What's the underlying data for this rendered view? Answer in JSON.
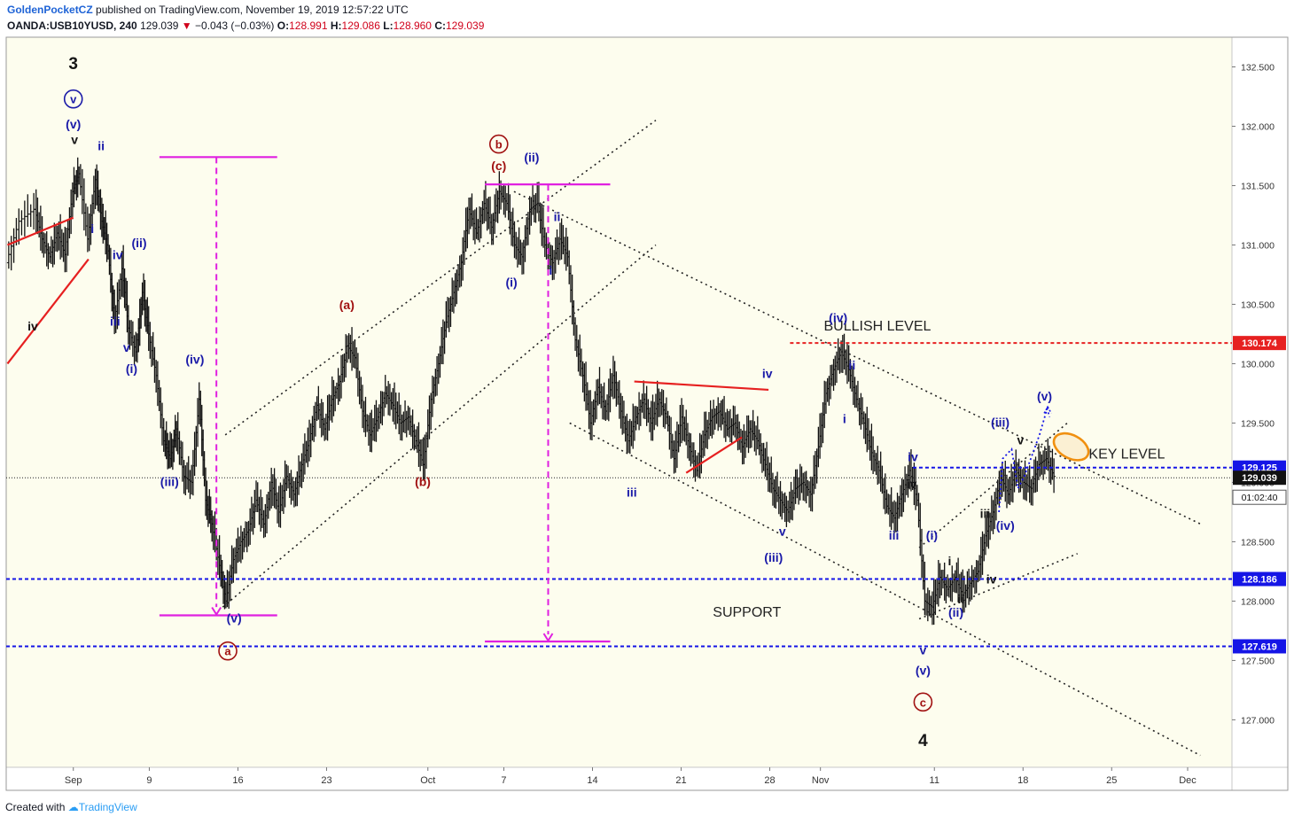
{
  "header": {
    "author": "GoldenPocketCZ",
    "published_text": "published on TradingView.com, November 19, 2019 12:57:22 UTC",
    "symbol": "OANDA:USB10YUSD, 240",
    "last_price": "129.039",
    "change_arrow": "▼",
    "change": "−0.043 (−0.03%)",
    "o_label": "O:",
    "o_value": "128.991",
    "h_label": "H:",
    "h_value": "129.086",
    "l_label": "L:",
    "l_value": "128.960",
    "c_label": "C:",
    "c_value": "129.039"
  },
  "footer": {
    "created_with": "Created with",
    "brand": "TradingView"
  },
  "colors": {
    "blue_wave": "#1a1aa8",
    "red_wave": "#a01010",
    "magenta": "#e020e0",
    "level_blue": "#1515e6",
    "level_red": "#e62020",
    "trend_red": "#e62020",
    "target_ellipse": "#f09010",
    "chart_bg": "#fdfdee"
  },
  "chart_data": {
    "type": "candlestick",
    "ylim": [
      126.6,
      132.75
    ],
    "y_ticks": [
      "132.500",
      "132.000",
      "131.500",
      "131.000",
      "130.500",
      "130.000",
      "129.500",
      "129.000",
      "128.500",
      "128.000",
      "127.500",
      "127.000"
    ],
    "y_tick_values": [
      132.5,
      132.0,
      131.5,
      131.0,
      130.5,
      130.0,
      129.5,
      129.0,
      128.5,
      128.0,
      127.5,
      127.0
    ],
    "x_ticks": [
      {
        "label": "Sep",
        "day": 3
      },
      {
        "label": "9",
        "day": 9
      },
      {
        "label": "16",
        "day": 16
      },
      {
        "label": "23",
        "day": 23
      },
      {
        "label": "Oct",
        "day": 31
      },
      {
        "label": "7",
        "day": 37
      },
      {
        "label": "14",
        "day": 44
      },
      {
        "label": "21",
        "day": 51
      },
      {
        "label": "28",
        "day": 58
      },
      {
        "label": "Nov",
        "day": 62
      },
      {
        "label": "11",
        "day": 71
      },
      {
        "label": "18",
        "day": 78
      },
      {
        "label": "25",
        "day": 85
      },
      {
        "label": "Dec",
        "day": 91
      }
    ],
    "xlim_days": [
      -2.3,
      94.5
    ],
    "path_points": [
      [
        -2.2,
        130.85
      ],
      [
        -1.2,
        131.2
      ],
      [
        0,
        131.3
      ],
      [
        0.6,
        131.05
      ],
      [
        1.2,
        130.9
      ],
      [
        1.8,
        131.1
      ],
      [
        2.4,
        130.92
      ],
      [
        3.0,
        131.45
      ],
      [
        3.5,
        131.6
      ],
      [
        4.2,
        131.05
      ],
      [
        4.8,
        131.55
      ],
      [
        5.3,
        131.2
      ],
      [
        5.8,
        130.95
      ],
      [
        6.3,
        130.35
      ],
      [
        6.9,
        130.8
      ],
      [
        7.4,
        130.3
      ],
      [
        8.0,
        130.1
      ],
      [
        8.5,
        130.6
      ],
      [
        9.0,
        130.25
      ],
      [
        9.6,
        129.9
      ],
      [
        10.2,
        129.35
      ],
      [
        10.7,
        129.2
      ],
      [
        11.2,
        129.45
      ],
      [
        11.8,
        129.05
      ],
      [
        12.4,
        129.0
      ],
      [
        13.0,
        129.7
      ],
      [
        13.5,
        128.85
      ],
      [
        14.0,
        128.65
      ],
      [
        14.6,
        128.3
      ],
      [
        15.1,
        128.0
      ],
      [
        15.7,
        128.35
      ],
      [
        16.3,
        128.5
      ],
      [
        16.9,
        128.6
      ],
      [
        17.5,
        128.85
      ],
      [
        18.1,
        128.65
      ],
      [
        18.7,
        129.0
      ],
      [
        19.3,
        128.75
      ],
      [
        19.9,
        129.05
      ],
      [
        20.5,
        128.9
      ],
      [
        21.1,
        129.15
      ],
      [
        21.7,
        129.35
      ],
      [
        22.3,
        129.65
      ],
      [
        22.9,
        129.45
      ],
      [
        23.5,
        129.7
      ],
      [
        24.1,
        129.85
      ],
      [
        24.7,
        130.15
      ],
      [
        25.3,
        130.05
      ],
      [
        25.9,
        129.6
      ],
      [
        26.5,
        129.4
      ],
      [
        27.1,
        129.55
      ],
      [
        27.7,
        129.75
      ],
      [
        28.3,
        129.65
      ],
      [
        28.9,
        129.5
      ],
      [
        29.5,
        129.55
      ],
      [
        30.1,
        129.35
      ],
      [
        30.7,
        129.15
      ],
      [
        31.3,
        129.7
      ],
      [
        31.9,
        130.0
      ],
      [
        32.5,
        130.35
      ],
      [
        33.1,
        130.6
      ],
      [
        33.7,
        130.85
      ],
      [
        34.3,
        131.3
      ],
      [
        34.9,
        131.1
      ],
      [
        35.5,
        131.35
      ],
      [
        36.1,
        131.15
      ],
      [
        36.7,
        131.45
      ],
      [
        37.3,
        131.35
      ],
      [
        37.9,
        131.0
      ],
      [
        38.5,
        130.9
      ],
      [
        39.1,
        131.3
      ],
      [
        39.7,
        131.35
      ],
      [
        40.3,
        131.0
      ],
      [
        40.9,
        130.85
      ],
      [
        41.5,
        131.05
      ],
      [
        42.1,
        130.9
      ],
      [
        42.7,
        130.2
      ],
      [
        43.3,
        129.9
      ],
      [
        43.9,
        129.5
      ],
      [
        44.5,
        129.8
      ],
      [
        45.1,
        129.6
      ],
      [
        45.7,
        129.9
      ],
      [
        46.3,
        129.6
      ],
      [
        46.9,
        129.35
      ],
      [
        47.5,
        129.55
      ],
      [
        48.1,
        129.7
      ],
      [
        48.7,
        129.5
      ],
      [
        49.3,
        129.7
      ],
      [
        49.9,
        129.55
      ],
      [
        50.5,
        129.2
      ],
      [
        51.1,
        129.55
      ],
      [
        51.7,
        129.3
      ],
      [
        52.3,
        129.1
      ],
      [
        52.9,
        129.4
      ],
      [
        53.5,
        129.55
      ],
      [
        54.1,
        129.6
      ],
      [
        54.7,
        129.45
      ],
      [
        55.3,
        129.5
      ],
      [
        55.9,
        129.3
      ],
      [
        56.5,
        129.45
      ],
      [
        57.1,
        129.35
      ],
      [
        57.7,
        129.15
      ],
      [
        58.3,
        128.95
      ],
      [
        58.9,
        128.85
      ],
      [
        59.5,
        128.75
      ],
      [
        60.1,
        128.95
      ],
      [
        60.7,
        129.0
      ],
      [
        61.3,
        128.9
      ],
      [
        61.9,
        129.3
      ],
      [
        62.5,
        129.75
      ],
      [
        63.1,
        129.95
      ],
      [
        63.7,
        130.1
      ],
      [
        64.3,
        129.95
      ],
      [
        64.9,
        129.7
      ],
      [
        65.5,
        129.5
      ],
      [
        66.1,
        129.25
      ],
      [
        66.7,
        129.1
      ],
      [
        67.3,
        128.8
      ],
      [
        67.9,
        128.7
      ],
      [
        68.5,
        128.9
      ],
      [
        69.1,
        129.1
      ],
      [
        69.7,
        128.85
      ],
      [
        70.3,
        128.0
      ],
      [
        70.9,
        127.95
      ],
      [
        71.5,
        128.2
      ],
      [
        72.1,
        128.1
      ],
      [
        72.7,
        128.2
      ],
      [
        73.3,
        128.05
      ],
      [
        73.9,
        128.15
      ],
      [
        74.5,
        128.25
      ],
      [
        75.1,
        128.55
      ],
      [
        75.7,
        128.75
      ],
      [
        76.3,
        129.05
      ],
      [
        76.9,
        128.9
      ],
      [
        77.5,
        129.1
      ],
      [
        78.1,
        129.0
      ],
      [
        78.7,
        128.95
      ],
      [
        79.3,
        129.15
      ],
      [
        79.9,
        129.2
      ],
      [
        80.5,
        129.05
      ]
    ],
    "levels": [
      {
        "label": "130.174",
        "value": 130.174
      },
      {
        "label": "129.125",
        "value": 129.125
      },
      {
        "label": "129.039",
        "value": 129.039
      },
      {
        "label": "128.186",
        "value": 128.186
      },
      {
        "label": "127.619",
        "value": 127.619
      }
    ],
    "countdown": "01:02:40",
    "text_annotations": [
      {
        "text": "BULLISH LEVEL",
        "day": 66.5,
        "price": 130.28
      },
      {
        "text": "KEY LEVEL",
        "day": 86.2,
        "price": 129.2
      },
      {
        "text": "SUPPORT",
        "day": 56.2,
        "price": 127.87
      }
    ],
    "wave_labels_black": [
      {
        "t": "3",
        "day": 3.0,
        "price": 132.48,
        "big": true
      },
      {
        "t": "v",
        "day": 3.1,
        "price": 131.85
      },
      {
        "t": "iv",
        "day": -0.2,
        "price": 130.28
      },
      {
        "t": "iv",
        "day": 69.2,
        "price": 128.95
      },
      {
        "t": "v",
        "day": 77.8,
        "price": 129.32
      },
      {
        "t": "iii",
        "day": 75.0,
        "price": 128.7
      },
      {
        "t": "i",
        "day": 72.2,
        "price": 128.3
      },
      {
        "t": "iv",
        "day": 75.5,
        "price": 128.15
      },
      {
        "t": "ii",
        "day": 73.1,
        "price": 127.98
      },
      {
        "t": "4",
        "day": 70.1,
        "price": 126.78,
        "big": true
      }
    ],
    "wave_labels_blue": [
      {
        "t": "(v)",
        "day": 3.0,
        "price": 131.98
      },
      {
        "t": "ii",
        "day": 5.2,
        "price": 131.8
      },
      {
        "t": "i",
        "day": 4.5,
        "price": 131.1
      },
      {
        "t": "iv",
        "day": 6.5,
        "price": 130.88
      },
      {
        "t": "(ii)",
        "day": 8.2,
        "price": 130.98
      },
      {
        "t": "iii",
        "day": 6.3,
        "price": 130.32
      },
      {
        "t": "v",
        "day": 7.2,
        "price": 130.1
      },
      {
        "t": "(i)",
        "day": 7.6,
        "price": 129.92
      },
      {
        "t": "(iv)",
        "day": 12.6,
        "price": 130.0
      },
      {
        "t": "(iii)",
        "day": 10.6,
        "price": 128.97
      },
      {
        "t": "(v)",
        "day": 15.7,
        "price": 127.82
      },
      {
        "t": "(ii)",
        "day": 39.2,
        "price": 131.7
      },
      {
        "t": "ii",
        "day": 41.2,
        "price": 131.2
      },
      {
        "t": "(i)",
        "day": 37.6,
        "price": 130.65
      },
      {
        "t": "i",
        "day": 40.7,
        "price": 130.75
      },
      {
        "t": "iii",
        "day": 47.1,
        "price": 128.88
      },
      {
        "t": "iv",
        "day": 57.8,
        "price": 129.88
      },
      {
        "t": "v",
        "day": 59.0,
        "price": 128.55
      },
      {
        "t": "(iii)",
        "day": 58.3,
        "price": 128.33
      },
      {
        "t": "(iv)",
        "day": 63.4,
        "price": 130.35
      },
      {
        "t": "ii",
        "day": 64.5,
        "price": 129.95
      },
      {
        "t": "i",
        "day": 63.9,
        "price": 129.5
      },
      {
        "t": "iii",
        "day": 67.8,
        "price": 128.52
      },
      {
        "t": "iv",
        "day": 69.3,
        "price": 129.18
      },
      {
        "t": "(i)",
        "day": 70.8,
        "price": 128.52
      },
      {
        "t": "(ii)",
        "day": 72.7,
        "price": 127.87
      },
      {
        "t": "v",
        "day": 70.1,
        "price": 127.55
      },
      {
        "t": "(v)",
        "day": 70.1,
        "price": 127.38
      },
      {
        "t": "(iii)",
        "day": 76.2,
        "price": 129.47
      },
      {
        "t": "(iv)",
        "day": 76.6,
        "price": 128.6
      },
      {
        "t": "(v)",
        "day": 79.7,
        "price": 129.69
      }
    ],
    "wave_labels_red": [
      {
        "t": "(a)",
        "day": 24.6,
        "price": 130.46
      },
      {
        "t": "(b)",
        "day": 30.6,
        "price": 128.97
      },
      {
        "t": "(c)",
        "day": 36.6,
        "price": 131.63
      }
    ],
    "circled_blue": [
      {
        "t": "v",
        "day": 3.0,
        "price": 132.2
      }
    ],
    "circled_red": [
      {
        "t": "b",
        "day": 36.6,
        "price": 131.82
      },
      {
        "t": "a",
        "day": 15.2,
        "price": 127.55
      },
      {
        "t": "c",
        "day": 70.1,
        "price": 127.12
      }
    ]
  }
}
